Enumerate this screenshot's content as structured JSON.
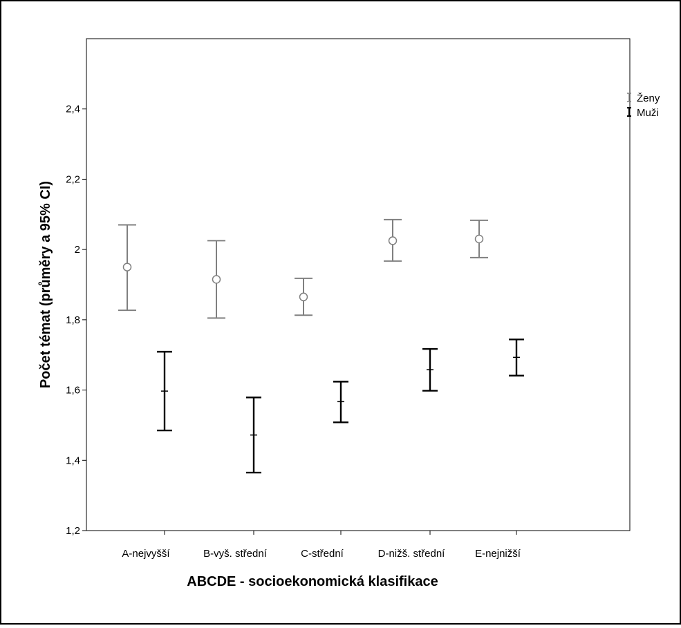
{
  "chart_data": {
    "type": "errorbar",
    "title": "",
    "xlabel": "ABCDE - socioekonomická klasifikace",
    "ylabel": "Počet témat (průměry a 95% CI)",
    "categories": [
      "A-nejvyšší",
      "B-vyš. střední",
      "C-střední",
      "D-nižš. střední",
      "E-nejnižší"
    ],
    "ylim": [
      1.2,
      2.6
    ],
    "yticks": [
      1.2,
      1.4,
      1.6,
      1.8,
      2,
      2.2,
      2.4
    ],
    "ytick_labels": [
      "1,2",
      "1,4",
      "1,6",
      "1,8",
      "2",
      "2,2",
      "2,4"
    ],
    "grid": false,
    "legend_position": "top-right outside",
    "series": [
      {
        "name": "Ženy",
        "color": "#808080",
        "marker": "circle",
        "mean": [
          1.95,
          1.915,
          1.865,
          2.025,
          2.03
        ],
        "lower": [
          1.827,
          1.805,
          1.813,
          1.967,
          1.977
        ],
        "upper": [
          2.07,
          2.025,
          1.918,
          2.085,
          2.083
        ]
      },
      {
        "name": "Muži",
        "color": "#000000",
        "marker": "dash",
        "mean": [
          1.597,
          1.472,
          1.567,
          1.658,
          1.693
        ],
        "lower": [
          1.485,
          1.365,
          1.508,
          1.598,
          1.641
        ],
        "upper": [
          1.709,
          1.579,
          1.624,
          1.717,
          1.744
        ]
      }
    ]
  }
}
